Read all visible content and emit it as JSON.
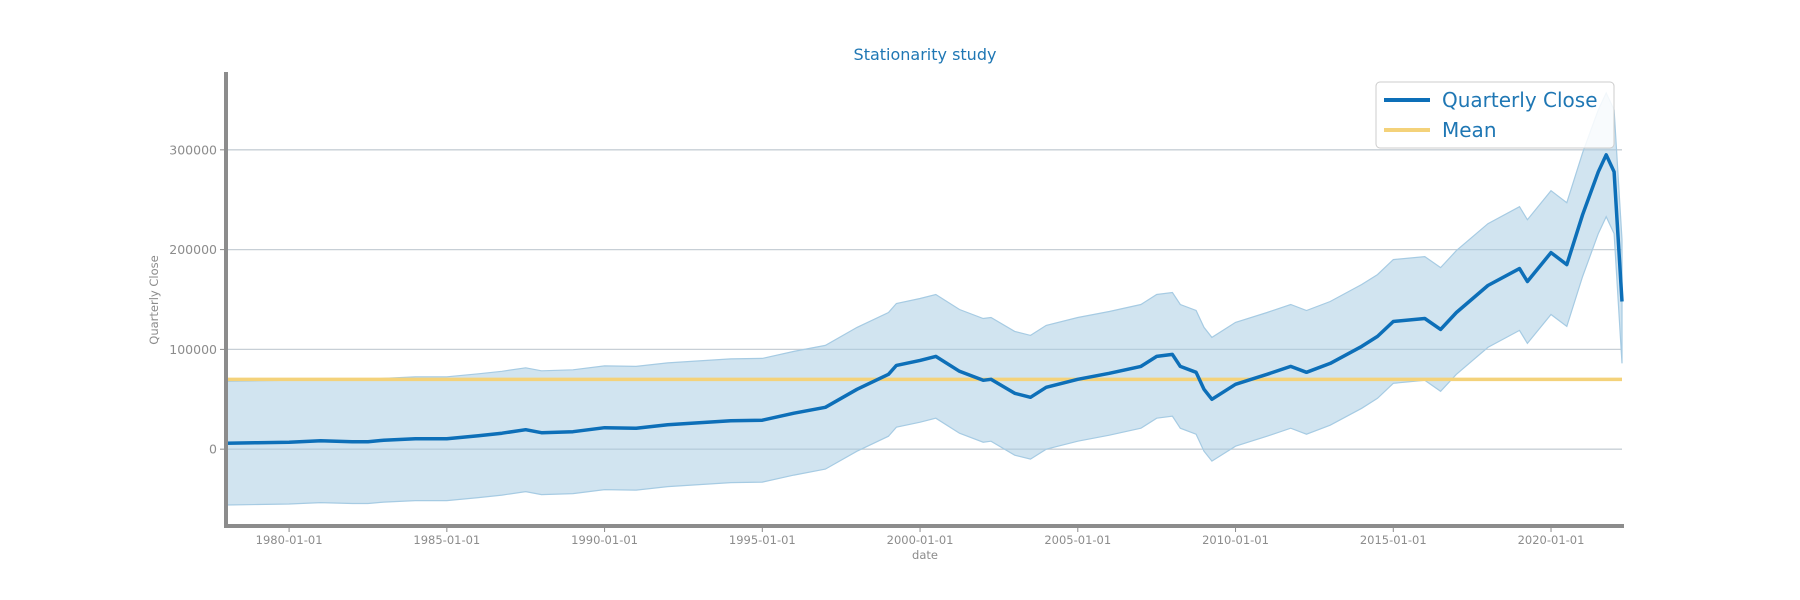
{
  "chart_data": {
    "type": "line",
    "title": "Stationarity study",
    "xlabel": "date",
    "ylabel": "Quarterly Close",
    "xlim": [
      "1978-01-01",
      "2022-04-01"
    ],
    "ylim": [
      -77000,
      378000
    ],
    "grid": "horizontal",
    "legend_position": "top-right",
    "colors": {
      "series": "#0d6fb8",
      "band": "#a6cbe3",
      "mean": "#f4d27a",
      "axis": "#8c8c8c",
      "grid": "#c7cfd6",
      "title": "#1f77b4"
    },
    "yticks": [
      0,
      100000,
      200000,
      300000
    ],
    "ytick_labels": [
      "0",
      "100000",
      "200000",
      "300000"
    ],
    "xticks": [
      "1980-01-01",
      "1985-01-01",
      "1990-01-01",
      "1995-01-01",
      "2000-01-01",
      "2005-01-01",
      "2010-01-01",
      "2015-01-01",
      "2020-01-01"
    ],
    "mean_value": 70000,
    "band_offset": 62000,
    "series": [
      {
        "name": "Quarterly Close",
        "style": "line",
        "points": [
          [
            "1978-01-01",
            6000
          ],
          [
            "1979-01-01",
            6500
          ],
          [
            "1980-01-01",
            7000
          ],
          [
            "1981-01-01",
            8500
          ],
          [
            "1982-01-01",
            7500
          ],
          [
            "1982-07-01",
            7500
          ],
          [
            "1983-01-01",
            9000
          ],
          [
            "1984-01-01",
            10500
          ],
          [
            "1985-01-01",
            10500
          ],
          [
            "1986-01-01",
            13500
          ],
          [
            "1986-10-01",
            16000
          ],
          [
            "1987-07-01",
            19500
          ],
          [
            "1988-01-01",
            16500
          ],
          [
            "1989-01-01",
            17500
          ],
          [
            "1990-01-01",
            21500
          ],
          [
            "1991-01-01",
            21000
          ],
          [
            "1992-01-01",
            24500
          ],
          [
            "1993-01-01",
            26500
          ],
          [
            "1994-01-01",
            28500
          ],
          [
            "1995-01-01",
            29000
          ],
          [
            "1996-01-01",
            36000
          ],
          [
            "1997-01-01",
            42000
          ],
          [
            "1998-01-01",
            60000
          ],
          [
            "1999-01-01",
            75000
          ],
          [
            "1999-04-01",
            84000
          ],
          [
            "2000-01-01",
            89000
          ],
          [
            "2000-07-01",
            93000
          ],
          [
            "2001-04-01",
            78000
          ],
          [
            "2002-01-01",
            69000
          ],
          [
            "2002-04-01",
            70000
          ],
          [
            "2003-01-01",
            56000
          ],
          [
            "2003-07-01",
            52000
          ],
          [
            "2004-01-01",
            62000
          ],
          [
            "2005-01-01",
            70000
          ],
          [
            "2006-01-01",
            76000
          ],
          [
            "2007-01-01",
            83000
          ],
          [
            "2007-07-01",
            93000
          ],
          [
            "2008-01-01",
            95000
          ],
          [
            "2008-04-01",
            83000
          ],
          [
            "2008-10-01",
            77000
          ],
          [
            "2009-01-01",
            60000
          ],
          [
            "2009-04-01",
            50000
          ],
          [
            "2010-01-01",
            65000
          ],
          [
            "2011-01-01",
            75000
          ],
          [
            "2011-10-01",
            83000
          ],
          [
            "2012-04-01",
            77000
          ],
          [
            "2013-01-01",
            86000
          ],
          [
            "2014-01-01",
            103000
          ],
          [
            "2014-07-01",
            113000
          ],
          [
            "2015-01-01",
            128000
          ],
          [
            "2016-01-01",
            131000
          ],
          [
            "2016-07-01",
            120000
          ],
          [
            "2017-01-01",
            137000
          ],
          [
            "2018-01-01",
            164000
          ],
          [
            "2019-01-01",
            181000
          ],
          [
            "2019-04-01",
            168000
          ],
          [
            "2020-01-01",
            197000
          ],
          [
            "2020-07-01",
            185000
          ],
          [
            "2021-01-01",
            235000
          ],
          [
            "2021-07-01",
            278000
          ],
          [
            "2021-10-01",
            295000
          ],
          [
            "2022-01-01",
            278000
          ],
          [
            "2022-04-01",
            148000
          ]
        ]
      },
      {
        "name": "Mean",
        "style": "horizontal",
        "value": 70000
      }
    ]
  }
}
